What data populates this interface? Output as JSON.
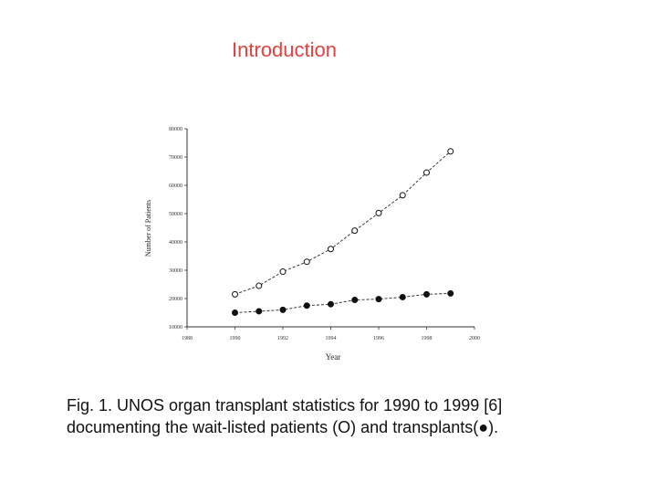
{
  "slide": {
    "title": "Introduction",
    "caption_lines": [
      "Fig. 1. UNOS organ transplant statistics for 1990 to 1999 [6]",
      "documenting the wait-listed patients (O) and transplants(●)."
    ]
  },
  "chart_data": {
    "type": "line",
    "title": "",
    "xlabel": "Year",
    "ylabel": "Number of Patients",
    "xlim": [
      1988,
      2000
    ],
    "ylim": [
      10000,
      80000
    ],
    "x_ticks": [
      1988,
      1990,
      1992,
      1994,
      1996,
      1998,
      2000
    ],
    "y_ticks": [
      10000,
      20000,
      30000,
      40000,
      50000,
      60000,
      70000,
      80000
    ],
    "grid": false,
    "legend": "none",
    "series": [
      {
        "marker": "open-circle",
        "x": [
          1990,
          1991,
          1992,
          1993,
          1994,
          1995,
          1996,
          1997,
          1998,
          1999
        ],
        "y": [
          21500,
          24500,
          29500,
          33000,
          37500,
          44000,
          50200,
          56500,
          64500,
          72000
        ]
      },
      {
        "marker": "filled-circle",
        "x": [
          1990,
          1991,
          1992,
          1993,
          1994,
          1995,
          1996,
          1997,
          1998,
          1999
        ],
        "y": [
          15000,
          15500,
          16000,
          17500,
          18000,
          19500,
          19800,
          20500,
          21500,
          21800
        ]
      }
    ]
  }
}
